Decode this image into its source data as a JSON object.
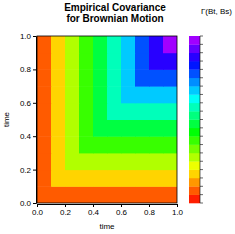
{
  "chart_data": {
    "type": "heatmap",
    "title": "Empirical Covariance\nfor Brownian Motion",
    "xlabel": "time",
    "ylabel": "time",
    "x": [
      0.05,
      0.15,
      0.25,
      0.35,
      0.45,
      0.55,
      0.65,
      0.75,
      0.85,
      0.95
    ],
    "y": [
      0.05,
      0.15,
      0.25,
      0.35,
      0.45,
      0.55,
      0.65,
      0.75,
      0.85,
      0.95
    ],
    "z": [
      [
        0.05,
        0.05,
        0.05,
        0.05,
        0.05,
        0.05,
        0.05,
        0.05,
        0.05,
        0.05
      ],
      [
        0.05,
        0.15,
        0.15,
        0.15,
        0.15,
        0.15,
        0.15,
        0.15,
        0.15,
        0.15
      ],
      [
        0.05,
        0.15,
        0.25,
        0.25,
        0.25,
        0.25,
        0.25,
        0.25,
        0.25,
        0.25
      ],
      [
        0.05,
        0.15,
        0.25,
        0.35,
        0.35,
        0.35,
        0.35,
        0.35,
        0.35,
        0.35
      ],
      [
        0.05,
        0.15,
        0.25,
        0.35,
        0.45,
        0.45,
        0.45,
        0.45,
        0.45,
        0.45
      ],
      [
        0.05,
        0.15,
        0.25,
        0.35,
        0.45,
        0.55,
        0.55,
        0.55,
        0.55,
        0.55
      ],
      [
        0.05,
        0.15,
        0.25,
        0.35,
        0.45,
        0.55,
        0.65,
        0.65,
        0.65,
        0.65
      ],
      [
        0.05,
        0.15,
        0.25,
        0.35,
        0.45,
        0.55,
        0.65,
        0.75,
        0.75,
        0.75
      ],
      [
        0.05,
        0.15,
        0.25,
        0.35,
        0.45,
        0.55,
        0.65,
        0.75,
        0.85,
        0.85
      ],
      [
        0.05,
        0.15,
        0.25,
        0.35,
        0.45,
        0.55,
        0.65,
        0.75,
        0.85,
        0.95
      ]
    ],
    "xlim": [
      0,
      1
    ],
    "ylim": [
      0,
      1
    ],
    "xticks": [
      {
        "value": 0,
        "label": "0.0"
      },
      {
        "value": 0.2,
        "label": "0.2"
      },
      {
        "value": 0.4,
        "label": "0.4"
      },
      {
        "value": 0.6,
        "label": "0.6"
      },
      {
        "value": 0.8,
        "label": "0.8"
      },
      {
        "value": 1,
        "label": "1.0"
      }
    ],
    "yticks": [
      {
        "value": 0,
        "label": "0.0"
      },
      {
        "value": 0.2,
        "label": "0.2"
      },
      {
        "value": 0.4,
        "label": "0.4"
      },
      {
        "value": 0.6,
        "label": "0.6"
      },
      {
        "value": 0.8,
        "label": "0.8"
      },
      {
        "value": 1,
        "label": "1.0"
      }
    ],
    "colorbar_label": "Γ(Bt, Bs)",
    "colorbar_range": [
      0,
      1
    ],
    "colorbar_ticks": [
      0,
      0.05,
      0.1,
      0.15,
      0.2,
      0.25,
      0.3,
      0.35,
      0.4,
      0.45,
      0.5,
      0.55,
      0.6,
      0.65,
      0.7,
      0.75,
      0.8,
      0.85,
      0.9,
      0.95,
      1
    ]
  }
}
